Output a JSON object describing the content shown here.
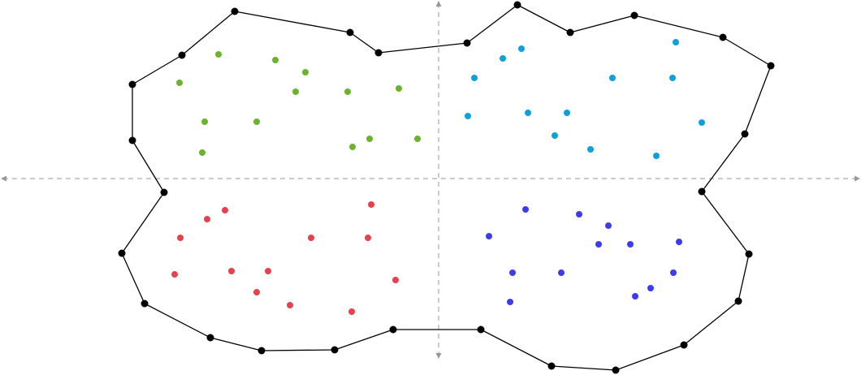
{
  "chart_data": {
    "type": "scatter",
    "title": "",
    "xlabel": "",
    "ylabel": "",
    "xlim": [
      -540,
      520
    ],
    "ylim": [
      -242,
      220
    ],
    "axes": {
      "style": "dashed",
      "color": "#aaaaaa",
      "arrows": true
    },
    "hull": {
      "name": "",
      "color": "#000000",
      "points": [
        [
          -251,
          206
        ],
        [
          -109,
          180
        ],
        [
          -74,
          155
        ],
        [
          35,
          167
        ],
        [
          97,
          214
        ],
        [
          162,
          180
        ],
        [
          241,
          201
        ],
        [
          350,
          174
        ],
        [
          409,
          139
        ],
        [
          377,
          55
        ],
        [
          324,
          -16
        ],
        [
          382,
          -93
        ],
        [
          369,
          -151
        ],
        [
          302,
          -205
        ],
        [
          218,
          -236
        ],
        [
          139,
          -231
        ],
        [
          52,
          -186
        ],
        [
          -56,
          -186
        ],
        [
          -128,
          -211
        ],
        [
          -218,
          -212
        ],
        [
          -281,
          -196
        ],
        [
          -362,
          -154
        ],
        [
          -390,
          -92
        ],
        [
          -338,
          -17
        ],
        [
          -377,
          47
        ],
        [
          -377,
          116
        ],
        [
          -316,
          152
        ]
      ]
    },
    "series": [
      {
        "name": "",
        "color": "#6ab42d",
        "points": [
          [
            -271,
            153
          ],
          [
            -201,
            146
          ],
          [
            -164,
            131
          ],
          [
            -319,
            118
          ],
          [
            -176,
            107
          ],
          [
            -112,
            107
          ],
          [
            -49,
            111
          ],
          [
            -288,
            70
          ],
          [
            -224,
            70
          ],
          [
            -85,
            49
          ],
          [
            -26,
            49
          ],
          [
            -106,
            39
          ],
          [
            -291,
            32
          ]
        ]
      },
      {
        "name": "",
        "color": "#0ea0dc",
        "points": [
          [
            102,
            160
          ],
          [
            79,
            148
          ],
          [
            292,
            168
          ],
          [
            44,
            124
          ],
          [
            214,
            124
          ],
          [
            288,
            124
          ],
          [
            110,
            81
          ],
          [
            158,
            81
          ],
          [
            36,
            77
          ],
          [
            324,
            69
          ],
          [
            143,
            53
          ],
          [
            187,
            36
          ],
          [
            268,
            28
          ]
        ]
      },
      {
        "name": "",
        "color": "#e8404c",
        "points": [
          [
            -83,
            -32
          ],
          [
            -263,
            -39
          ],
          [
            -285,
            -50
          ],
          [
            -318,
            -73
          ],
          [
            -157,
            -73
          ],
          [
            -87,
            -73
          ],
          [
            -255,
            -114
          ],
          [
            -210,
            -114
          ],
          [
            -325,
            -118
          ],
          [
            -53,
            -125
          ],
          [
            -224,
            -140
          ],
          [
            -183,
            -156
          ],
          [
            -107,
            -164
          ]
        ]
      },
      {
        "name": "",
        "color": "#3c3cec",
        "points": [
          [
            107,
            -38
          ],
          [
            173,
            -44
          ],
          [
            209,
            -58
          ],
          [
            62,
            -71
          ],
          [
            197,
            -81
          ],
          [
            236,
            -81
          ],
          [
            296,
            -78
          ],
          [
            91,
            -116
          ],
          [
            151,
            -116
          ],
          [
            289,
            -116
          ],
          [
            261,
            -135
          ],
          [
            242,
            -145
          ],
          [
            88,
            -152
          ]
        ]
      }
    ]
  }
}
